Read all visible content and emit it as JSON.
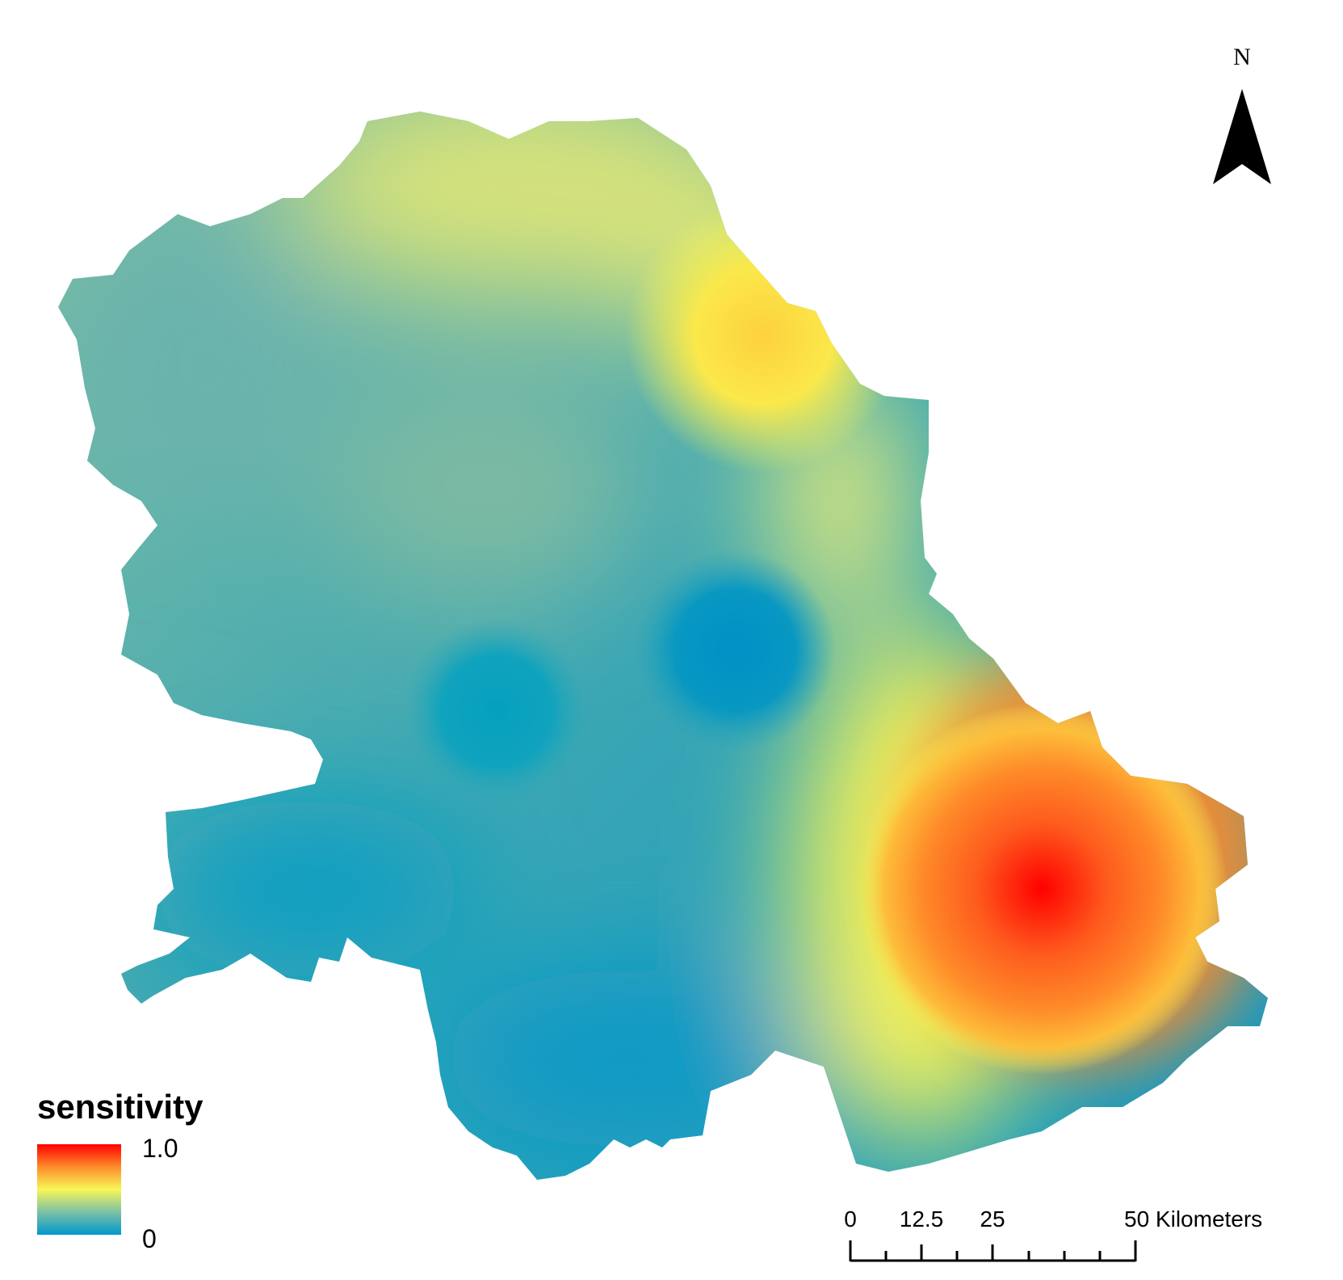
{
  "north_arrow": {
    "label": "N",
    "icon": "north-arrow-icon"
  },
  "legend": {
    "title": "sensitivity",
    "max_label": "1.0",
    "min_label": "0",
    "min_value": 0,
    "max_value": 1.0,
    "colors": [
      "#0099cc",
      "#7dc0a6",
      "#f7f757",
      "#fe8b29",
      "#ff0000"
    ]
  },
  "scale_bar": {
    "labels": [
      "0",
      "12.5",
      "25",
      "50 Kilometers"
    ],
    "values": [
      0,
      12.5,
      25,
      50
    ],
    "unit": "Kilometers"
  },
  "map": {
    "hotspots": [
      {
        "kind": "high",
        "color": "#ff0000",
        "value": 1.0
      },
      {
        "kind": "mid-high",
        "color": "#fdd13d",
        "value": 0.65
      },
      {
        "kind": "low",
        "color": "#0091c6",
        "value": 0.0
      },
      {
        "kind": "low",
        "color": "#05a0bf",
        "value": 0.1
      }
    ]
  }
}
